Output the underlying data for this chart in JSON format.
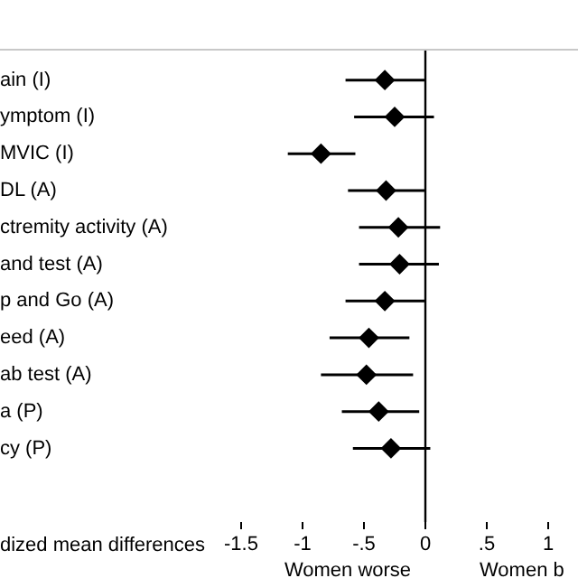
{
  "chart_data": {
    "type": "scatter",
    "orientation": "horizontal",
    "xlabel": "dized mean differences",
    "categories": [
      "ain (I)",
      "ymptom (I)",
      "MVIC (I)",
      "DL (A)",
      "ctremity activity (A)",
      "and test (A)",
      "p and Go (A)",
      "eed (A)",
      "ab test (A)",
      "a (P)",
      "cy (P)"
    ],
    "values": [
      -0.33,
      -0.25,
      -0.85,
      -0.32,
      -0.22,
      -0.21,
      -0.33,
      -0.46,
      -0.48,
      -0.38,
      -0.28
    ],
    "errors": [
      [
        -0.65,
        0
      ],
      [
        -0.58,
        0.07
      ],
      [
        -1.12,
        -0.57
      ],
      [
        -0.63,
        0
      ],
      [
        -0.54,
        0.12
      ],
      [
        -0.54,
        0.11
      ],
      [
        -0.65,
        0
      ],
      [
        -0.78,
        -0.13
      ],
      [
        -0.85,
        -0.1
      ],
      [
        -0.68,
        -0.05
      ],
      [
        -0.59,
        0.04
      ]
    ],
    "color": "#000000",
    "marker": "diamond",
    "grid": false,
    "legend": false,
    "xticks": [
      {
        "value": -1.5,
        "label": "-1.5"
      },
      {
        "value": -1,
        "label": "-1"
      },
      {
        "value": -0.5,
        "label": "-.5"
      },
      {
        "value": 0,
        "label": "0"
      },
      {
        "value": 0.5,
        "label": ".5"
      },
      {
        "value": 1,
        "label": "1"
      }
    ],
    "xlim": [
      -1.5,
      1
    ],
    "ref_lines": [
      {
        "axis": "x",
        "value": 0,
        "color": "#000000"
      }
    ],
    "annotations": [
      "Women worse",
      "Women b"
    ]
  }
}
